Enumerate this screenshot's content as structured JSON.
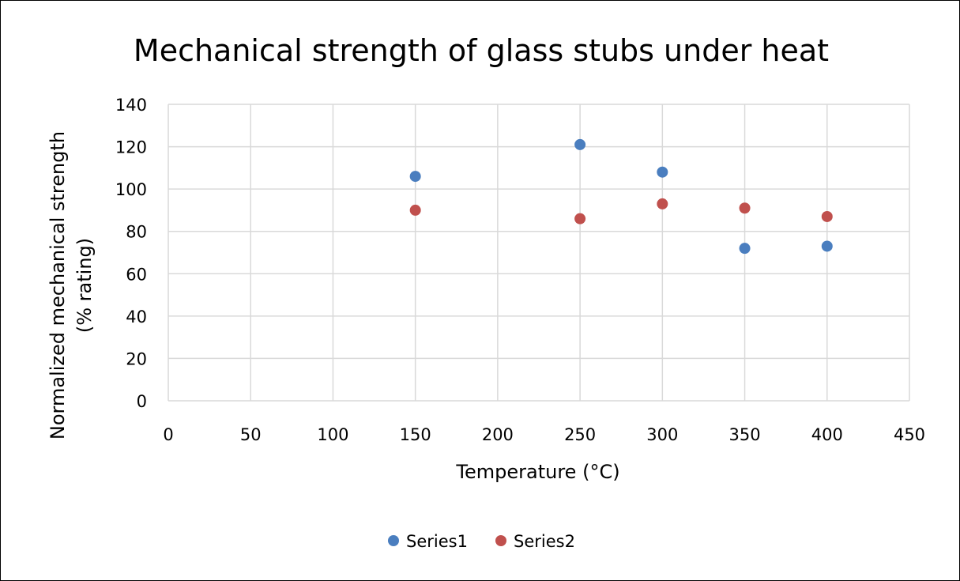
{
  "chart_data": {
    "type": "scatter",
    "title": "Mechanical strength of glass stubs under heat",
    "xlabel": "Temperature (°C)",
    "ylabel_lines": [
      "Normalized mechanical strength",
      "(% rating)"
    ],
    "xlim": [
      0,
      450
    ],
    "ylim": [
      0,
      140
    ],
    "xticks": [
      0,
      50,
      100,
      150,
      200,
      250,
      300,
      350,
      400,
      450
    ],
    "yticks": [
      0,
      20,
      40,
      60,
      80,
      100,
      120,
      140
    ],
    "grid": true,
    "legend_position": "bottom",
    "series": [
      {
        "name": "Series1",
        "color": "#4a7ebf",
        "points": [
          {
            "x": 150,
            "y": 106
          },
          {
            "x": 250,
            "y": 121
          },
          {
            "x": 300,
            "y": 108
          },
          {
            "x": 350,
            "y": 72
          },
          {
            "x": 400,
            "y": 73
          }
        ]
      },
      {
        "name": "Series2",
        "color": "#c0504d",
        "points": [
          {
            "x": 150,
            "y": 90
          },
          {
            "x": 250,
            "y": 86
          },
          {
            "x": 300,
            "y": 93
          },
          {
            "x": 350,
            "y": 91
          },
          {
            "x": 400,
            "y": 87
          }
        ]
      }
    ]
  }
}
